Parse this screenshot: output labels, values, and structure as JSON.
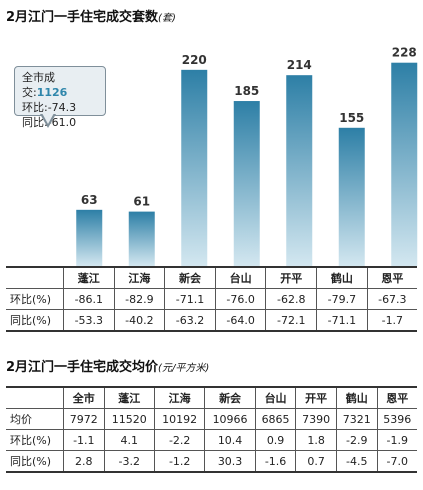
{
  "chart_data": {
    "type": "bar",
    "title": "2月江门一手住宅成交套数",
    "title_unit": "(套)",
    "categories": [
      "蓬江",
      "江海",
      "新会",
      "台山",
      "开平",
      "鹤山",
      "恩平"
    ],
    "values": [
      63,
      61,
      220,
      185,
      214,
      155,
      228
    ],
    "ylim": [
      0,
      240
    ],
    "grid": false,
    "bar_color_top": "#2d7fa6",
    "bar_color_bottom": "#d3e7f0"
  },
  "callout": {
    "total_label": "全市成交:",
    "total_value": "1126",
    "hb_line": "环比:-74.3",
    "tb_line": "同比:-61.0"
  },
  "table1": {
    "rows": [
      {
        "label": "环比(%)",
        "values": [
          "-86.1",
          "-82.9",
          "-71.1",
          "-76.0",
          "-62.8",
          "-79.7",
          "-67.3"
        ]
      },
      {
        "label": "同比(%)",
        "values": [
          "-53.3",
          "-40.2",
          "-63.2",
          "-64.0",
          "-72.1",
          "-71.1",
          "-1.7"
        ]
      }
    ]
  },
  "price": {
    "title": "2月江门一手住宅成交均价",
    "title_unit": "(元/平方米)",
    "columns": [
      "全市",
      "蓬江",
      "江海",
      "新会",
      "台山",
      "开平",
      "鹤山",
      "恩平"
    ],
    "rows": [
      {
        "label": "均价",
        "values": [
          "7972",
          "11520",
          "10192",
          "10966",
          "6865",
          "7390",
          "7321",
          "5396"
        ]
      },
      {
        "label": "环比(%)",
        "values": [
          "-1.1",
          "4.1",
          "-2.2",
          "10.4",
          "0.9",
          "1.8",
          "-2.9",
          "-1.9"
        ]
      },
      {
        "label": "同比(%)",
        "values": [
          "2.8",
          "-3.2",
          "-1.2",
          "30.3",
          "-1.6",
          "0.7",
          "-4.5",
          "-7.0"
        ]
      }
    ]
  }
}
